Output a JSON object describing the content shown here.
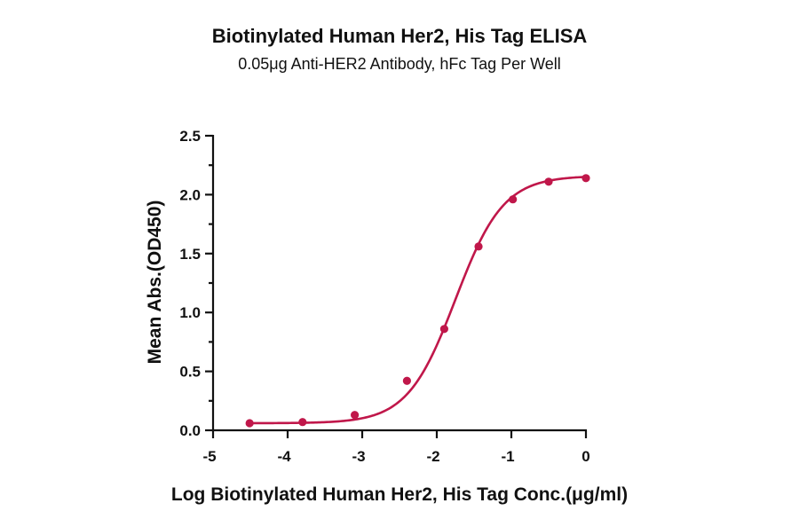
{
  "chart_data": {
    "type": "line",
    "title": "Biotinylated Human Her2, His Tag ELISA",
    "subtitle": "0.05μg Anti-HER2 Antibody, hFc Tag Per Well",
    "xlabel": "Log Biotinylated Human Her2, His Tag Conc.(μg/ml)",
    "ylabel": "Mean Abs.(OD450)",
    "xlim": [
      -5,
      0
    ],
    "ylim": [
      0,
      2.5
    ],
    "xticks": [
      -5,
      -4,
      -3,
      -2,
      -1,
      0
    ],
    "xtick_labels": [
      "-5",
      "-4",
      "-3",
      "-2",
      "-1",
      "0"
    ],
    "yticks": [
      0.0,
      0.5,
      1.0,
      1.5,
      2.0,
      2.5
    ],
    "ytick_labels": [
      "0.0",
      "0.5",
      "1.0",
      "1.5",
      "2.0",
      "2.5"
    ],
    "grid": false,
    "series": [
      {
        "color": "#c0174a",
        "x": [
          -4.51,
          -3.8,
          -3.1,
          -2.4,
          -1.9,
          -1.44,
          -0.98,
          -0.5,
          0.0
        ],
        "values": [
          0.06,
          0.07,
          0.13,
          0.42,
          0.86,
          1.56,
          1.96,
          2.11,
          2.14
        ]
      }
    ]
  }
}
